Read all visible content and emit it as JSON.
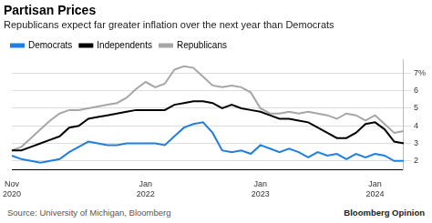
{
  "chart_data": {
    "type": "line",
    "title": "Partisan Prices",
    "subtitle": "Republicans expect far greater inflation over the next year than Democrats",
    "source": "Source: University of Michigan, Bloomberg",
    "credit": "Bloomberg Opinion",
    "categories": [
      "Nov 2020",
      null,
      null,
      null,
      null,
      null,
      null,
      null,
      null,
      null,
      null,
      null,
      null,
      null,
      "Jan 2022",
      null,
      null,
      null,
      null,
      null,
      null,
      null,
      null,
      null,
      null,
      null,
      "Jan 2023",
      null,
      null,
      null,
      null,
      null,
      null,
      null,
      null,
      null,
      null,
      null,
      "Jan 2024",
      null,
      null,
      null
    ],
    "series": [
      {
        "name": "Democrats",
        "color": "#1f7fe0",
        "values": [
          2.3,
          2.1,
          2.0,
          1.9,
          2.0,
          2.1,
          2.5,
          2.8,
          3.1,
          3.0,
          2.9,
          2.9,
          3.0,
          3.0,
          3.0,
          3.0,
          2.9,
          3.4,
          3.9,
          4.1,
          4.2,
          3.6,
          2.6,
          2.5,
          2.6,
          2.4,
          2.9,
          2.7,
          2.5,
          2.7,
          2.5,
          2.2,
          2.5,
          2.3,
          2.4,
          2.1,
          2.4,
          2.2,
          2.4,
          2.3,
          2.0,
          2.0
        ]
      },
      {
        "name": "Independents",
        "color": "#000000",
        "values": [
          2.6,
          2.6,
          2.8,
          3.0,
          3.2,
          3.4,
          3.9,
          4.0,
          4.4,
          4.5,
          4.6,
          4.7,
          4.8,
          4.9,
          4.9,
          4.9,
          4.9,
          5.2,
          5.3,
          5.4,
          5.4,
          5.3,
          5.0,
          5.2,
          5.0,
          4.9,
          4.8,
          4.6,
          4.4,
          4.4,
          4.3,
          4.2,
          3.9,
          3.6,
          3.3,
          3.3,
          3.6,
          4.1,
          4.2,
          3.8,
          3.1,
          3.0
        ]
      },
      {
        "name": "Republicans",
        "color": "#a6a6a6",
        "values": [
          2.6,
          2.8,
          3.3,
          3.8,
          4.3,
          4.7,
          4.9,
          4.9,
          5.0,
          5.1,
          5.2,
          5.3,
          5.6,
          6.1,
          6.5,
          6.2,
          6.4,
          7.2,
          7.4,
          7.3,
          6.8,
          6.3,
          6.2,
          6.3,
          6.2,
          5.9,
          5.0,
          4.7,
          4.7,
          4.8,
          4.7,
          4.8,
          4.7,
          4.6,
          4.4,
          4.7,
          4.6,
          4.3,
          4.6,
          4.1,
          3.6,
          3.7
        ]
      }
    ],
    "ylim": [
      1.5,
      7.8
    ],
    "yticks": [
      2,
      3,
      4,
      5,
      6,
      {
        "value": 7,
        "label": "7%"
      }
    ],
    "grid": true,
    "legend": "top-left"
  }
}
